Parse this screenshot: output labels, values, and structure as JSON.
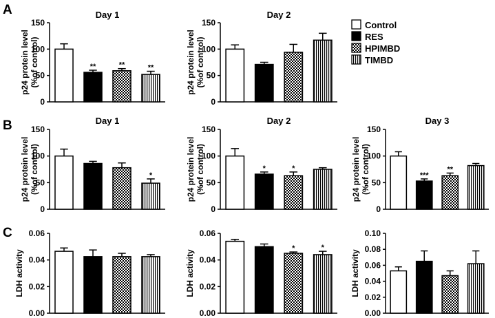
{
  "panels": [
    {
      "letter": "A",
      "key": "a"
    },
    {
      "letter": "B",
      "key": "b"
    },
    {
      "letter": "C",
      "key": "c"
    }
  ],
  "legend": [
    {
      "label": "Control",
      "fill": "white"
    },
    {
      "label": "RES",
      "fill": "black"
    },
    {
      "label": "HPIMBD",
      "fill": "checker"
    },
    {
      "label": "TIMBD",
      "fill": "vstripe"
    }
  ],
  "chart_data": [
    {
      "id": "A1",
      "type": "bar",
      "title": "Day 1",
      "ylabel": [
        "p24 protein level",
        "(%of control)"
      ],
      "categories": [
        "Control",
        "RES",
        "HPIMBD",
        "TIMBD"
      ],
      "values": [
        100,
        56,
        59,
        52
      ],
      "errors": [
        10,
        4,
        4,
        6
      ],
      "significance": [
        "",
        "**",
        "**",
        "**"
      ],
      "ylim": [
        0,
        150
      ],
      "yticks": [
        0,
        50,
        100,
        150
      ]
    },
    {
      "id": "A2",
      "type": "bar",
      "title": "Day 2",
      "ylabel": [
        "p24 protein level",
        "(%of control)"
      ],
      "categories": [
        "Control",
        "RES",
        "HPIMBD",
        "TIMBD"
      ],
      "values": [
        100,
        71,
        94,
        117
      ],
      "errors": [
        8,
        4,
        15,
        13
      ],
      "significance": [
        "",
        "",
        "",
        ""
      ],
      "ylim": [
        0,
        150
      ],
      "yticks": [
        0,
        50,
        100,
        150
      ]
    },
    {
      "id": "B1",
      "type": "bar",
      "title": "Day 1",
      "ylabel": [
        "p24 protein level",
        "(%of control)"
      ],
      "categories": [
        "Control",
        "RES",
        "HPIMBD",
        "TIMBD"
      ],
      "values": [
        100,
        86,
        78,
        49
      ],
      "errors": [
        13,
        4,
        9,
        8
      ],
      "significance": [
        "",
        "",
        "",
        "*"
      ],
      "ylim": [
        0,
        150
      ],
      "yticks": [
        0,
        50,
        100,
        150
      ]
    },
    {
      "id": "B2",
      "type": "bar",
      "title": "Day 2",
      "ylabel": [
        "p24 protein level",
        "(%of control)"
      ],
      "categories": [
        "Control",
        "RES",
        "HPIMBD",
        "TIMBD"
      ],
      "values": [
        100,
        66,
        63,
        75
      ],
      "errors": [
        14,
        4,
        7,
        3
      ],
      "significance": [
        "",
        "*",
        "*",
        ""
      ],
      "ylim": [
        0,
        150
      ],
      "yticks": [
        0,
        50,
        100,
        150
      ]
    },
    {
      "id": "B3",
      "type": "bar",
      "title": "Day 3",
      "ylabel": [
        "p24 protein level",
        "(%of control)"
      ],
      "categories": [
        "Control",
        "RES",
        "HPIMBD",
        "TIMBD"
      ],
      "values": [
        100,
        53,
        63,
        82
      ],
      "errors": [
        8,
        4,
        5,
        4
      ],
      "significance": [
        "",
        "***",
        "**",
        ""
      ],
      "ylim": [
        0,
        150
      ],
      "yticks": [
        0,
        50,
        100,
        150
      ]
    },
    {
      "id": "C1",
      "type": "bar",
      "title": "",
      "ylabel": [
        "LDH activity"
      ],
      "categories": [
        "Control",
        "RES",
        "HPIMBD",
        "TIMBD"
      ],
      "values": [
        0.0465,
        0.0425,
        0.0425,
        0.0425
      ],
      "errors": [
        0.0025,
        0.005,
        0.0025,
        0.0015
      ],
      "significance": [
        "",
        "",
        "",
        ""
      ],
      "ylim": [
        0,
        0.06
      ],
      "yticks": [
        0,
        0.02,
        0.04,
        0.06
      ],
      "ytick_labels": [
        "0.00",
        "0.02",
        "0.04",
        "0.06"
      ]
    },
    {
      "id": "C2",
      "type": "bar",
      "title": "",
      "ylabel": [
        "LDH activity"
      ],
      "categories": [
        "Control",
        "RES",
        "HPIMBD",
        "TIMBD"
      ],
      "values": [
        0.054,
        0.05,
        0.045,
        0.044
      ],
      "errors": [
        0.0015,
        0.002,
        0.001,
        0.0025
      ],
      "significance": [
        "",
        "",
        "*",
        "*"
      ],
      "ylim": [
        0,
        0.06
      ],
      "yticks": [
        0,
        0.02,
        0.04,
        0.06
      ],
      "ytick_labels": [
        "0.00",
        "0.02",
        "0.04",
        "0.06"
      ]
    },
    {
      "id": "C3",
      "type": "bar",
      "title": "",
      "ylabel": [
        "LDH activity"
      ],
      "categories": [
        "Control",
        "RES",
        "HPIMBD",
        "TIMBD"
      ],
      "values": [
        0.053,
        0.065,
        0.047,
        0.062
      ],
      "errors": [
        0.005,
        0.013,
        0.006,
        0.016
      ],
      "significance": [
        "",
        "",
        "",
        ""
      ],
      "ylim": [
        0,
        0.1
      ],
      "yticks": [
        0,
        0.02,
        0.04,
        0.06,
        0.08,
        0.1
      ],
      "ytick_labels": [
        "0.00",
        "0.02",
        "0.04",
        "0.06",
        "0.08",
        "0.10"
      ]
    }
  ]
}
